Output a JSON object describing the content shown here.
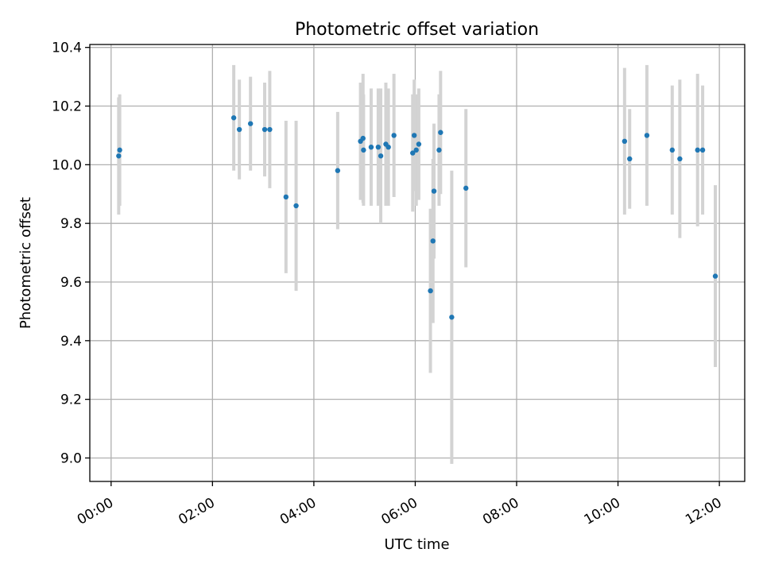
{
  "chart_data": {
    "type": "scatter",
    "title": "Photometric offset variation",
    "xlabel": "UTC time",
    "ylabel": "Photometric offset",
    "x_unit": "hours UTC",
    "xlim": [
      -0.42,
      12.5
    ],
    "ylim": [
      8.92,
      10.41
    ],
    "grid": true,
    "x_ticks": [
      {
        "value": 0,
        "label": "00:00"
      },
      {
        "value": 2,
        "label": "02:00"
      },
      {
        "value": 4,
        "label": "04:00"
      },
      {
        "value": 6,
        "label": "06:00"
      },
      {
        "value": 8,
        "label": "08:00"
      },
      {
        "value": 10,
        "label": "10:00"
      },
      {
        "value": 12,
        "label": "12:00"
      }
    ],
    "y_ticks": [
      {
        "value": 9.0,
        "label": "9.0"
      },
      {
        "value": 9.2,
        "label": "9.2"
      },
      {
        "value": 9.4,
        "label": "9.4"
      },
      {
        "value": 9.6,
        "label": "9.6"
      },
      {
        "value": 9.8,
        "label": "9.8"
      },
      {
        "value": 10.0,
        "label": "10.0"
      },
      {
        "value": 10.2,
        "label": "10.2"
      },
      {
        "value": 10.4,
        "label": "10.4"
      }
    ],
    "colors": {
      "point": "#1f77b4",
      "errorbar": "#d3d3d3",
      "grid": "#b0b0b0"
    },
    "points": [
      {
        "x": 0.15,
        "y": 10.03,
        "err": 0.2
      },
      {
        "x": 0.17,
        "y": 10.05,
        "err": 0.19
      },
      {
        "x": 2.42,
        "y": 10.16,
        "err": 0.18
      },
      {
        "x": 2.53,
        "y": 10.12,
        "err": 0.17
      },
      {
        "x": 2.75,
        "y": 10.14,
        "err": 0.16
      },
      {
        "x": 3.03,
        "y": 10.12,
        "err": 0.16
      },
      {
        "x": 3.13,
        "y": 10.12,
        "err": 0.2
      },
      {
        "x": 3.45,
        "y": 9.89,
        "err": 0.26
      },
      {
        "x": 3.65,
        "y": 9.86,
        "err": 0.29
      },
      {
        "x": 4.47,
        "y": 9.98,
        "err": 0.2
      },
      {
        "x": 4.92,
        "y": 10.08,
        "err": 0.2
      },
      {
        "x": 4.97,
        "y": 10.09,
        "err": 0.22
      },
      {
        "x": 4.98,
        "y": 10.05,
        "err": 0.19
      },
      {
        "x": 5.13,
        "y": 10.06,
        "err": 0.2
      },
      {
        "x": 5.27,
        "y": 10.06,
        "err": 0.2
      },
      {
        "x": 5.32,
        "y": 10.03,
        "err": 0.23
      },
      {
        "x": 5.42,
        "y": 10.07,
        "err": 0.21
      },
      {
        "x": 5.47,
        "y": 10.06,
        "err": 0.2
      },
      {
        "x": 5.58,
        "y": 10.1,
        "err": 0.21
      },
      {
        "x": 5.95,
        "y": 10.04,
        "err": 0.2
      },
      {
        "x": 5.98,
        "y": 10.1,
        "err": 0.19
      },
      {
        "x": 6.02,
        "y": 10.05,
        "err": 0.19
      },
      {
        "x": 6.07,
        "y": 10.07,
        "err": 0.19
      },
      {
        "x": 6.3,
        "y": 9.57,
        "err": 0.28
      },
      {
        "x": 6.35,
        "y": 9.74,
        "err": 0.28
      },
      {
        "x": 6.37,
        "y": 9.91,
        "err": 0.23
      },
      {
        "x": 6.47,
        "y": 10.05,
        "err": 0.19
      },
      {
        "x": 6.5,
        "y": 10.11,
        "err": 0.21
      },
      {
        "x": 6.72,
        "y": 9.48,
        "err": 0.5
      },
      {
        "x": 7.0,
        "y": 9.92,
        "err": 0.27
      },
      {
        "x": 10.13,
        "y": 10.08,
        "err": 0.25
      },
      {
        "x": 10.23,
        "y": 10.02,
        "err": 0.17
      },
      {
        "x": 10.57,
        "y": 10.1,
        "err": 0.24
      },
      {
        "x": 11.07,
        "y": 10.05,
        "err": 0.22
      },
      {
        "x": 11.22,
        "y": 10.02,
        "err": 0.27
      },
      {
        "x": 11.57,
        "y": 10.05,
        "err": 0.26
      },
      {
        "x": 11.67,
        "y": 10.05,
        "err": 0.22
      },
      {
        "x": 11.92,
        "y": 9.62,
        "err": 0.31
      }
    ]
  }
}
